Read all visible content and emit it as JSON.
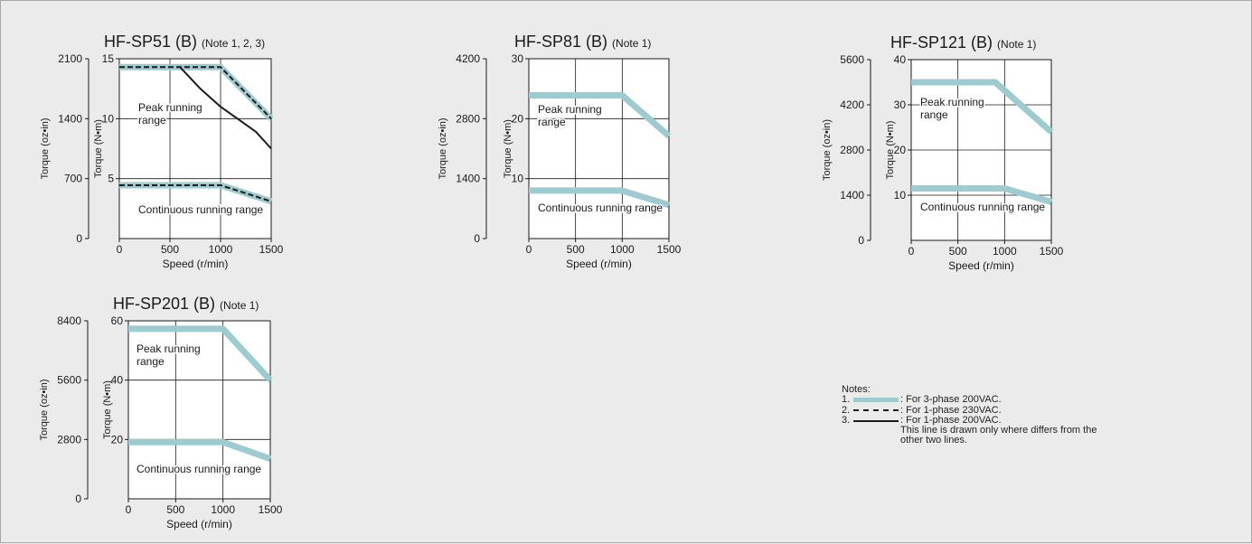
{
  "chart_data": [
    {
      "type": "line",
      "title": "HF-SP51 (B)",
      "note": "(Note 1, 2, 3)",
      "xlabel": "Speed (r/min)",
      "ylabel": "Torque (N•m)",
      "ylabel2": "Torque (oz•in)",
      "xlim": [
        0,
        1500
      ],
      "ylim": [
        0,
        15
      ],
      "ylim2": [
        0,
        2100
      ],
      "xticks": [
        0,
        500,
        1000,
        1500
      ],
      "yticks": [
        5,
        10,
        15
      ],
      "yticks2": [
        0,
        700,
        1400,
        2100
      ],
      "grid": true,
      "region_labels": {
        "peak": "Peak running range",
        "continuous": "Continuous running range"
      },
      "series": [
        {
          "style": "cyan",
          "x": [
            0,
            1000,
            1500
          ],
          "y": [
            14.3,
            14.3,
            10.0
          ]
        },
        {
          "style": "cyan",
          "x": [
            0,
            1000,
            1500
          ],
          "y": [
            4.45,
            4.45,
            3.1
          ]
        },
        {
          "style": "dashed",
          "x": [
            0,
            1000,
            1500
          ],
          "y": [
            14.3,
            14.3,
            10.0
          ]
        },
        {
          "style": "dashed",
          "x": [
            0,
            1000,
            1500
          ],
          "y": [
            4.45,
            4.45,
            3.1
          ]
        },
        {
          "style": "solid",
          "x": [
            600,
            800,
            1000,
            1200,
            1350,
            1500
          ],
          "y": [
            14.3,
            12.5,
            11.0,
            9.8,
            8.9,
            7.5
          ]
        }
      ]
    },
    {
      "type": "line",
      "title": "HF-SP81 (B)",
      "note": "(Note 1)",
      "xlabel": "Speed (r/min)",
      "ylabel": "Torque (N•m)",
      "ylabel2": "Torque (oz•in)",
      "xlim": [
        0,
        1500
      ],
      "ylim": [
        0,
        30
      ],
      "ylim2": [
        0,
        4200
      ],
      "xticks": [
        0,
        500,
        1000,
        1500
      ],
      "yticks": [
        10,
        20,
        30
      ],
      "yticks2": [
        0,
        1400,
        2800,
        4200
      ],
      "grid": true,
      "region_labels": {
        "peak": "Peak running range",
        "continuous": "Continuous running range"
      },
      "series": [
        {
          "style": "cyan",
          "x": [
            0,
            1000,
            1500
          ],
          "y": [
            23.9,
            23.9,
            17.1
          ]
        },
        {
          "style": "cyan",
          "x": [
            0,
            1000,
            1500
          ],
          "y": [
            8.0,
            8.0,
            5.6
          ]
        }
      ]
    },
    {
      "type": "line",
      "title": "HF-SP121 (B)",
      "note": "(Note 1)",
      "xlabel": "Speed (r/min)",
      "ylabel": "Torque (N•m)",
      "ylabel2": "Torque (oz•in)",
      "xlim": [
        0,
        1500
      ],
      "ylim": [
        0,
        40
      ],
      "ylim2": [
        0,
        5600
      ],
      "xticks": [
        0,
        500,
        1000,
        1500
      ],
      "yticks": [
        10,
        20,
        30,
        40
      ],
      "yticks2": [
        0,
        1400,
        2800,
        4200,
        5600
      ],
      "grid": true,
      "region_labels": {
        "peak": "Peak running range",
        "continuous": "Continuous running range"
      },
      "series": [
        {
          "style": "cyan",
          "x": [
            0,
            900,
            1500
          ],
          "y": [
            35.0,
            35.0,
            24.0
          ]
        },
        {
          "style": "cyan",
          "x": [
            0,
            1000,
            1500
          ],
          "y": [
            11.5,
            11.5,
            8.5
          ]
        }
      ]
    },
    {
      "type": "line",
      "title": "HF-SP201 (B)",
      "note": "(Note 1)",
      "xlabel": "Speed (r/min)",
      "ylabel": "Torque (N•m)",
      "ylabel2": "Torque (oz•in)",
      "xlim": [
        0,
        1500
      ],
      "ylim": [
        0,
        60
      ],
      "ylim2": [
        0,
        8400
      ],
      "xticks": [
        0,
        500,
        1000,
        1500
      ],
      "yticks": [
        20,
        40,
        60
      ],
      "yticks2": [
        0,
        2800,
        5600,
        8400
      ],
      "grid": true,
      "region_labels": {
        "peak": "Peak running range",
        "continuous": "Continuous running range"
      },
      "series": [
        {
          "style": "cyan",
          "x": [
            0,
            1000,
            1500
          ],
          "y": [
            57.3,
            57.3,
            40.0
          ]
        },
        {
          "style": "cyan",
          "x": [
            0,
            1000,
            1500
          ],
          "y": [
            19.1,
            19.1,
            13.5
          ]
        }
      ]
    }
  ],
  "legend": {
    "title": "Notes:",
    "items": [
      {
        "num": "1.",
        "style": "cyan",
        "text": ": For 3-phase 200VAC."
      },
      {
        "num": "2.",
        "style": "dashed",
        "text": ": For 1-phase 230VAC."
      },
      {
        "num": "3.",
        "style": "solid",
        "text": ": For 1-phase 200VAC."
      }
    ],
    "extra_lines": [
      "This line is drawn only where differs from the",
      "other two lines."
    ]
  },
  "colors": {
    "cyan": "#9ecbcf",
    "line": "#1a1a1a",
    "background": "#ebebeb",
    "plot": "#ffffff"
  }
}
